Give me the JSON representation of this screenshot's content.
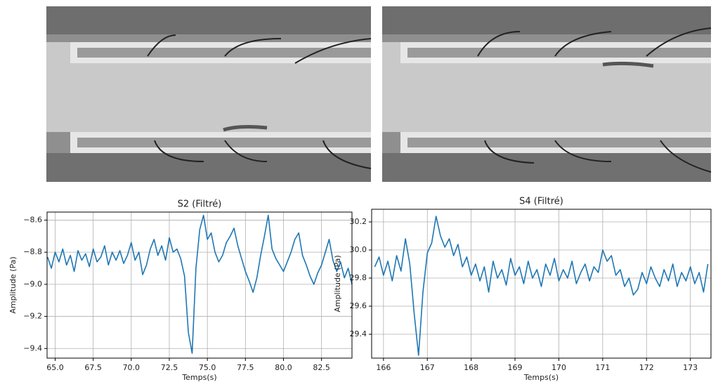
{
  "chart_data": [
    {
      "type": "line",
      "title": "S2 (Filtré)",
      "x_label": "Temps(s)",
      "y_label": "Amplitude  (Pa)",
      "xlim": [
        64.47,
        84.5
      ],
      "ylim": [
        -9.46,
        -8.55
      ],
      "grid": true,
      "xticks": [
        {
          "value": 65,
          "label": "65.0"
        },
        67.5,
        {
          "value": 70,
          "label": "70.0"
        },
        72.5,
        {
          "value": 75,
          "label": "75.0"
        },
        77.5,
        {
          "value": 80,
          "label": "80.0"
        },
        82.5
      ],
      "yticks": [
        {
          "value": -8.6,
          "label": "−8.6"
        },
        {
          "value": -8.8,
          "label": "−8.8"
        },
        {
          "value": -9.0,
          "label": "−9.0"
        },
        {
          "value": -9.2,
          "label": "−9.2"
        },
        {
          "value": -9.4,
          "label": "−9.4"
        }
      ],
      "x": [
        64.5,
        64.75,
        65,
        65.25,
        65.5,
        65.75,
        66,
        66.25,
        66.5,
        66.75,
        67,
        67.25,
        67.5,
        67.75,
        68,
        68.25,
        68.5,
        68.75,
        69,
        69.25,
        69.5,
        69.75,
        70,
        70.25,
        70.5,
        70.75,
        71,
        71.25,
        71.5,
        71.75,
        72,
        72.25,
        72.5,
        72.75,
        73,
        73.25,
        73.5,
        73.75,
        74,
        74.25,
        74.5,
        74.75,
        75,
        75.25,
        75.5,
        75.75,
        76,
        76.25,
        76.5,
        76.75,
        77,
        77.25,
        77.5,
        77.75,
        78,
        78.25,
        78.5,
        78.75,
        79,
        79.25,
        79.5,
        79.75,
        80,
        80.25,
        80.5,
        80.75,
        81,
        81.25,
        81.5,
        81.75,
        82,
        82.25,
        82.5,
        82.75,
        83,
        83.25,
        83.5,
        83.75,
        84,
        84.25,
        84.5
      ],
      "series": [
        {
          "color": "#1f77b4",
          "values": [
            -8.83,
            -8.9,
            -8.8,
            -8.86,
            -8.78,
            -8.88,
            -8.82,
            -8.92,
            -8.79,
            -8.85,
            -8.81,
            -8.89,
            -8.78,
            -8.86,
            -8.83,
            -8.76,
            -8.88,
            -8.8,
            -8.85,
            -8.79,
            -8.87,
            -8.82,
            -8.74,
            -8.85,
            -8.8,
            -8.94,
            -8.88,
            -8.78,
            -8.72,
            -8.82,
            -8.76,
            -8.85,
            -8.71,
            -8.8,
            -8.78,
            -8.84,
            -8.95,
            -9.3,
            -9.43,
            -8.9,
            -8.66,
            -8.57,
            -8.72,
            -8.68,
            -8.8,
            -8.86,
            -8.82,
            -8.74,
            -8.7,
            -8.65,
            -8.76,
            -8.84,
            -8.92,
            -8.98,
            -9.05,
            -8.96,
            -8.82,
            -8.7,
            -8.57,
            -8.78,
            -8.84,
            -8.88,
            -8.92,
            -8.86,
            -8.8,
            -8.72,
            -8.68,
            -8.82,
            -8.88,
            -8.95,
            -9.0,
            -8.93,
            -8.88,
            -8.8,
            -8.72,
            -8.85,
            -8.92,
            -8.86,
            -8.96,
            -8.9,
            -9.0
          ]
        }
      ]
    },
    {
      "type": "line",
      "title": "S4 (Filtré)",
      "x_label": "Temps(s)",
      "y_label": "Amplitude (Pa)",
      "xlim": [
        165.73,
        173.47
      ],
      "ylim": [
        29.23,
        30.29
      ],
      "grid": true,
      "xticks": [
        166,
        167,
        168,
        169,
        170,
        171,
        172,
        173
      ],
      "yticks": [
        30.2,
        {
          "value": 30.0,
          "label": "30.0"
        },
        29.8,
        29.6,
        29.4
      ],
      "x": [
        165.8,
        165.9,
        166,
        166.1,
        166.2,
        166.3,
        166.4,
        166.5,
        166.6,
        166.7,
        166.8,
        166.9,
        167,
        167.1,
        167.2,
        167.3,
        167.4,
        167.5,
        167.6,
        167.7,
        167.8,
        167.9,
        168,
        168.1,
        168.2,
        168.3,
        168.4,
        168.5,
        168.6,
        168.7,
        168.8,
        168.9,
        169,
        169.1,
        169.2,
        169.3,
        169.4,
        169.5,
        169.6,
        169.7,
        169.8,
        169.9,
        170,
        170.1,
        170.2,
        170.3,
        170.4,
        170.5,
        170.6,
        170.7,
        170.8,
        170.9,
        171,
        171.1,
        171.2,
        171.3,
        171.4,
        171.5,
        171.6,
        171.7,
        171.8,
        171.9,
        172,
        172.1,
        172.2,
        172.3,
        172.4,
        172.5,
        172.6,
        172.7,
        172.8,
        172.9,
        173,
        173.1,
        173.2,
        173.3,
        173.4
      ],
      "series": [
        {
          "color": "#1f77b4",
          "values": [
            29.88,
            29.95,
            29.82,
            29.92,
            29.78,
            29.96,
            29.85,
            30.08,
            29.9,
            29.55,
            29.25,
            29.7,
            29.98,
            30.05,
            30.24,
            30.1,
            30.02,
            30.08,
            29.96,
            30.04,
            29.88,
            29.95,
            29.82,
            29.9,
            29.78,
            29.88,
            29.7,
            29.92,
            29.8,
            29.86,
            29.75,
            29.94,
            29.82,
            29.88,
            29.76,
            29.92,
            29.8,
            29.86,
            29.74,
            29.9,
            29.82,
            29.94,
            29.78,
            29.86,
            29.8,
            29.92,
            29.76,
            29.84,
            29.9,
            29.78,
            29.88,
            29.84,
            30.0,
            29.92,
            29.96,
            29.82,
            29.86,
            29.74,
            29.8,
            29.68,
            29.72,
            29.84,
            29.76,
            29.88,
            29.8,
            29.74,
            29.86,
            29.78,
            29.9,
            29.74,
            29.84,
            29.78,
            29.88,
            29.76,
            29.84,
            29.7,
            29.9
          ]
        }
      ]
    }
  ]
}
